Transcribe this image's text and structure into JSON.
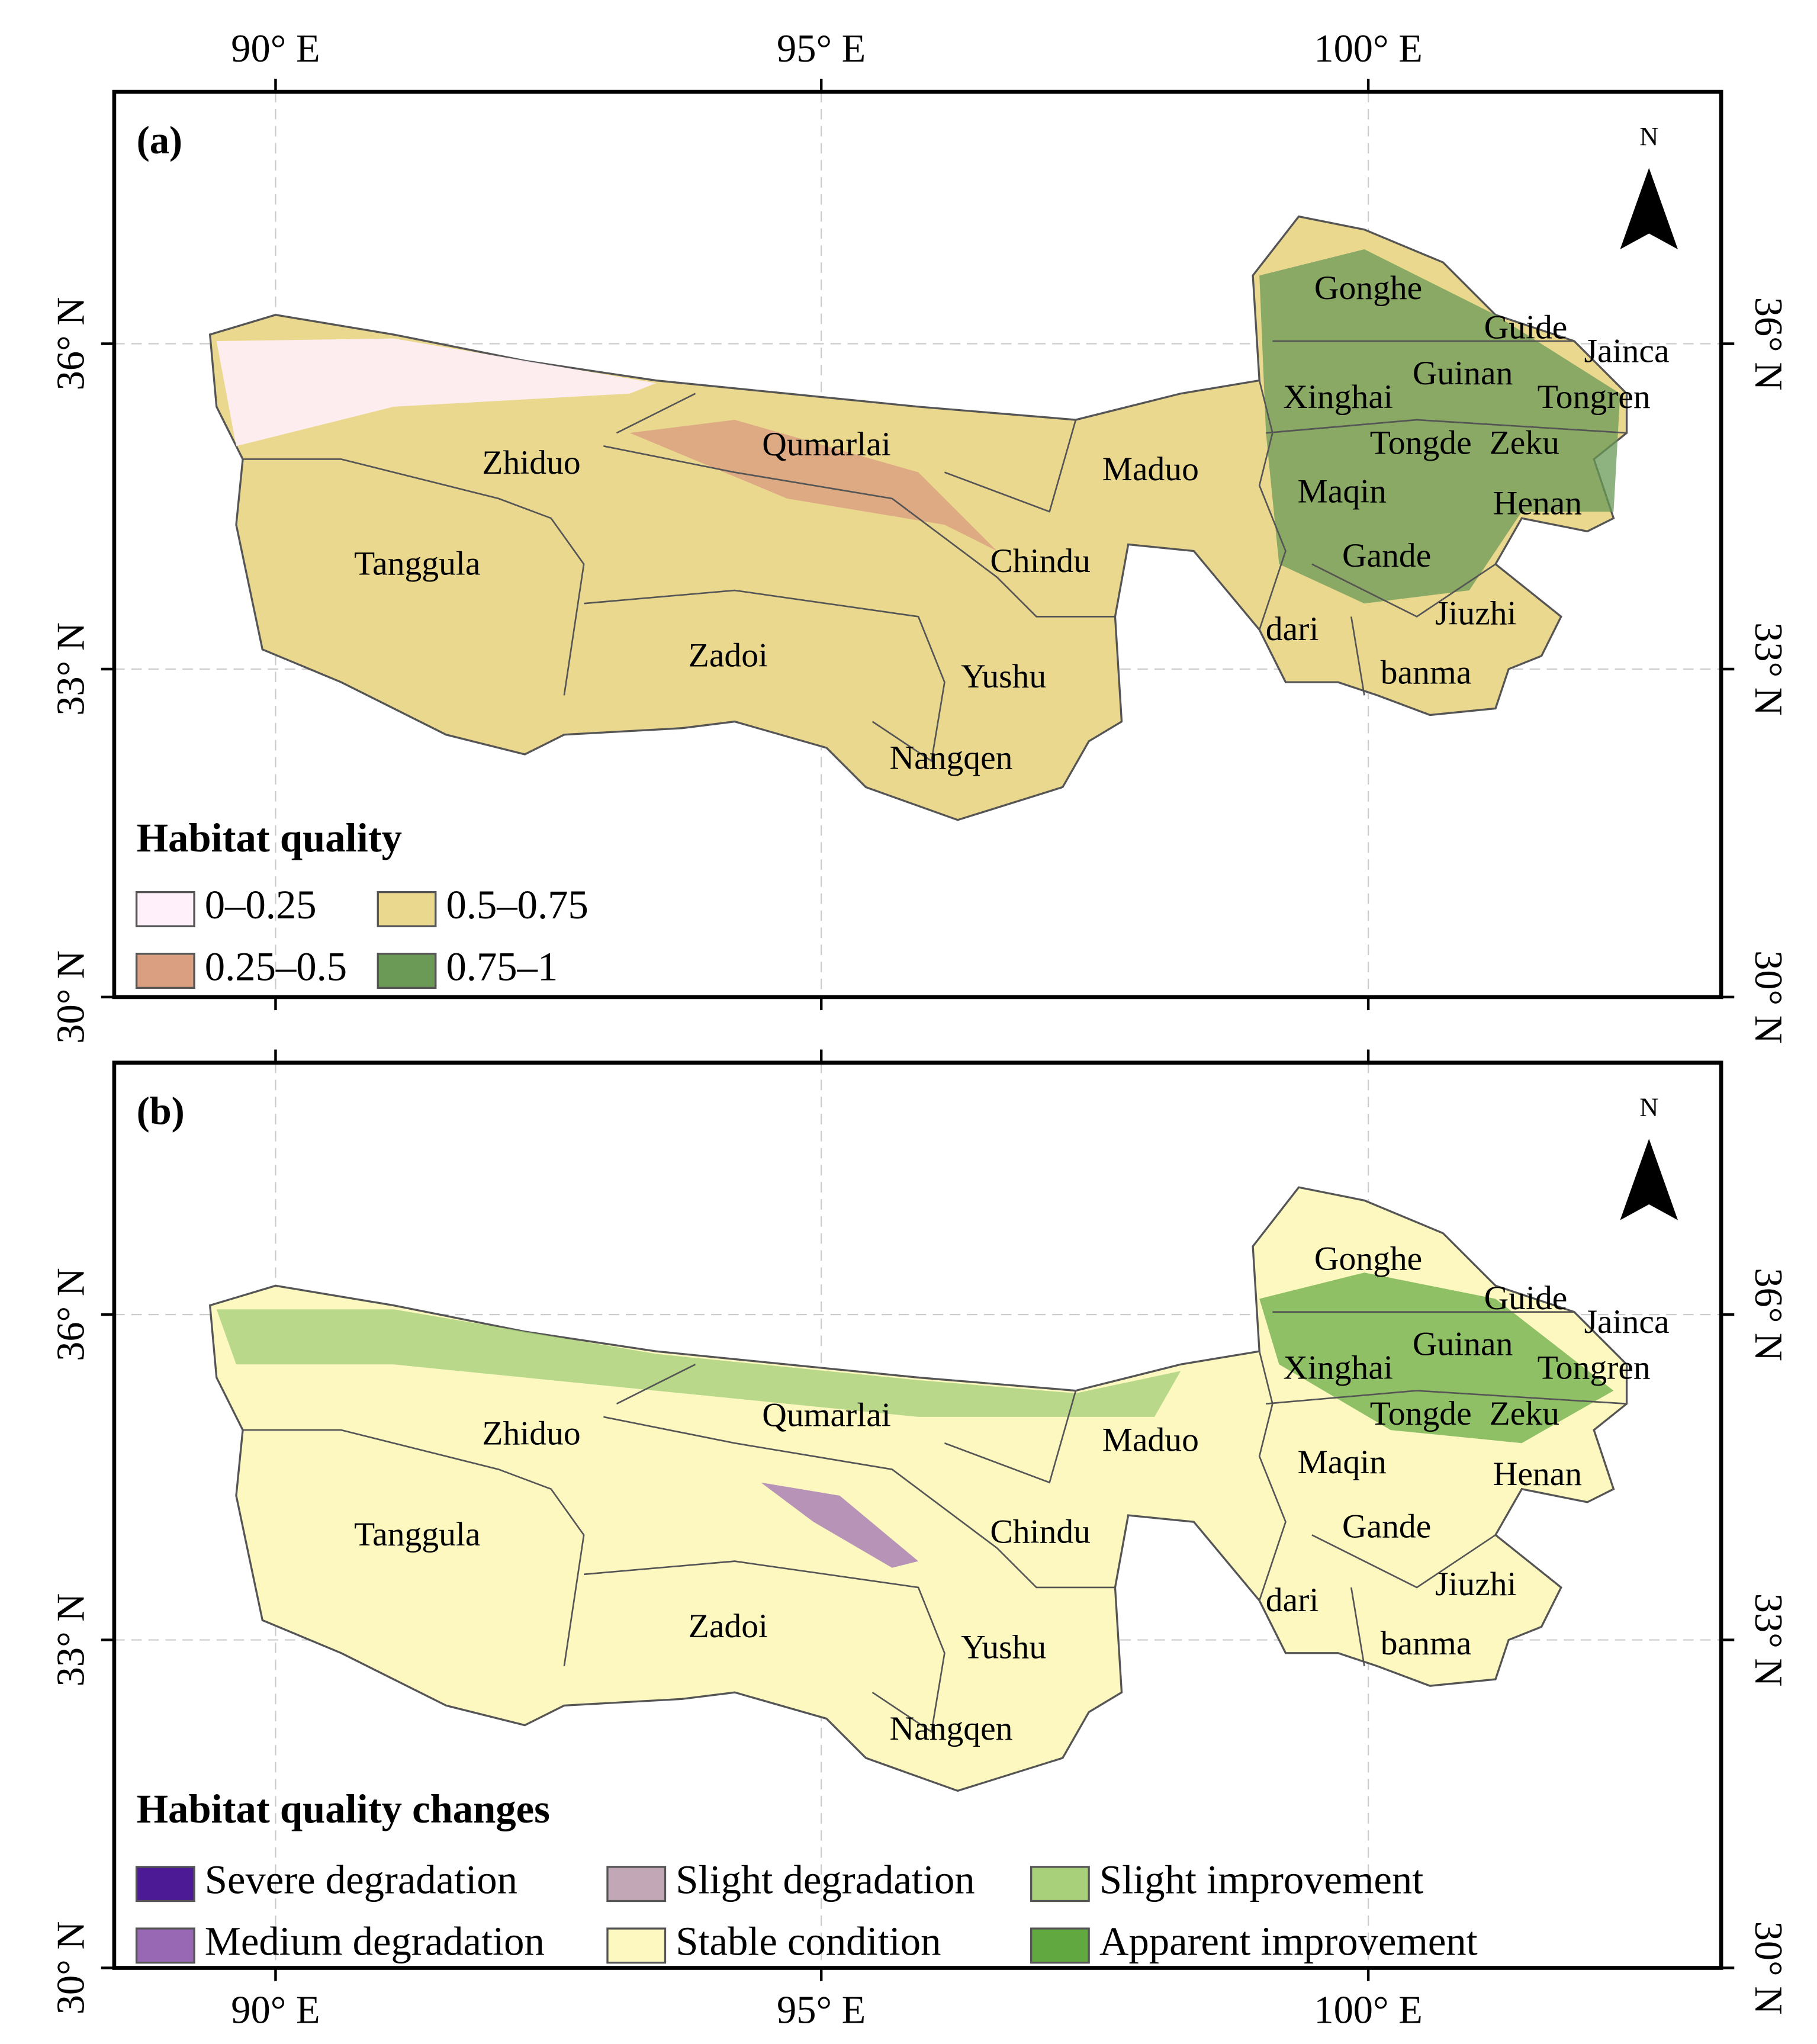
{
  "x_labels": [
    "90° E",
    "95° E",
    "100° E"
  ],
  "y_labels": [
    "36° N",
    "33° N",
    "30° N"
  ],
  "north": "N",
  "regions": [
    "Gonghe",
    "Guide",
    "Jainca",
    "Guinan",
    "Xinghai",
    "Tongren",
    "Tongde",
    "Zeku",
    "Maqin",
    "Henan",
    "Maduo",
    "Qumarlai",
    "Zhiduo",
    "Chindu",
    "Gande",
    "Tanggula",
    "Jiuzhi",
    "dari",
    "Zadoi",
    "Yushu",
    "banma",
    "Nangqen"
  ],
  "panels": [
    {
      "label": "(a)",
      "legend_title": "Habitat quality",
      "legend": [
        {
          "label": "0–0.25",
          "color": "#fff0fa"
        },
        {
          "label": "0.5–0.75",
          "color": "#ebd88f"
        },
        {
          "label": "0.25–0.5",
          "color": "#d99f80"
        },
        {
          "label": "0.75–1",
          "color": "#6a9a55"
        }
      ]
    },
    {
      "label": "(b)",
      "legend_title": "Habitat quality changes",
      "legend": [
        {
          "label": "Severe degradation",
          "color": "#4b1a94"
        },
        {
          "label": "Slight degradation",
          "color": "#c2a8b6"
        },
        {
          "label": "Slight improvement",
          "color": "#a8d07a"
        },
        {
          "label": "Medium degradation",
          "color": "#9868b4"
        },
        {
          "label": "Stable condition",
          "color": "#fcf8c0"
        },
        {
          "label": "Apparent improvement",
          "color": "#62a840"
        }
      ]
    }
  ]
}
